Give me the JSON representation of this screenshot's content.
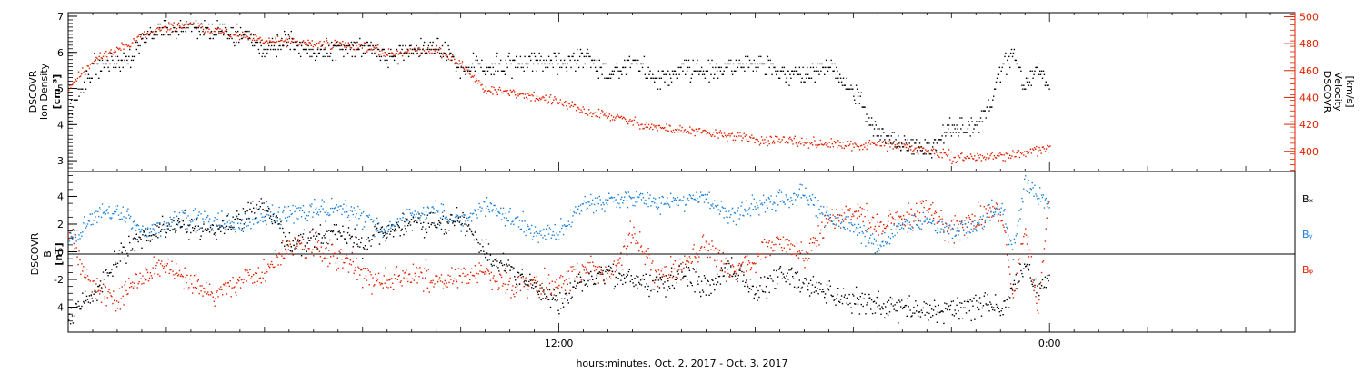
{
  "xaxis": {
    "label": "hours:minutes, Oct.  2, 2017 - Oct.  3, 2017",
    "range_hours": [
      0,
      50
    ],
    "major_ticks": [
      {
        "hour": 20,
        "label": "12:00"
      },
      {
        "hour": 40,
        "label": "0:00"
      }
    ]
  },
  "panel_top": {
    "ylabel_left": [
      "DSCOVR",
      "Ion Density",
      "[cm⁻³]"
    ],
    "ylabel_right": [
      "DSCOVR",
      "Velocity",
      "[km/s]"
    ],
    "left_ticks": [
      "3",
      "4",
      "5",
      "6",
      "7"
    ],
    "right_ticks": [
      "400",
      "420",
      "440",
      "460",
      "480",
      "500"
    ]
  },
  "panel_bottom": {
    "ylabel": [
      "DSCOVR",
      "B",
      "[nT]"
    ],
    "ticks": [
      "-4",
      "-2",
      "0",
      "2",
      "4"
    ],
    "legend": [
      "Bₓ",
      "Bᵧ",
      "Bᵩ"
    ]
  },
  "colors": {
    "density": "#000000",
    "velocity": "#dd2200",
    "bx": "#000000",
    "by": "#1a7fd4",
    "bz": "#dd2200"
  },
  "chart_data": [
    {
      "type": "scatter",
      "title": "",
      "xlabel": "hours:minutes, Oct.  2, 2017 - Oct.  3, 2017",
      "x_units": "hours since Oct. 2, 2017 04:00 UT (axis labels show 12:00 at 20 h and 0:00 at 40 h)",
      "series": [
        {
          "name": "Ion Density",
          "axis": "left",
          "units": "cm^-3",
          "ylim": [
            2.7,
            7.1
          ],
          "x": [
            0,
            1,
            2,
            2.5,
            3,
            4,
            5,
            6,
            7,
            8,
            9,
            10,
            11,
            12,
            13,
            14,
            15,
            16,
            16.5,
            17,
            18,
            19,
            20,
            21,
            22,
            23,
            24,
            25,
            26,
            27,
            28,
            29,
            30,
            31,
            32,
            33,
            34,
            35,
            36,
            37,
            37.5,
            38,
            38.5,
            39,
            39.5,
            40
          ],
          "y": [
            4.3,
            5.6,
            5.8,
            5.9,
            6.4,
            6.7,
            6.7,
            6.6,
            6.5,
            6.1,
            6.4,
            6.0,
            6.1,
            6.2,
            5.9,
            6.1,
            6.2,
            5.5,
            5.7,
            5.6,
            5.7,
            5.8,
            5.7,
            5.9,
            5.4,
            5.8,
            5.2,
            5.6,
            5.5,
            5.6,
            5.8,
            5.5,
            5.3,
            5.7,
            4.9,
            3.8,
            3.5,
            3.3,
            3.9,
            4.0,
            4.5,
            5.5,
            5.9,
            5.1,
            5.6,
            5.0
          ]
        },
        {
          "name": "Velocity",
          "axis": "right",
          "units": "km/s",
          "ylim": [
            385,
            503
          ],
          "x": [
            0,
            1,
            2,
            3,
            4,
            5,
            6,
            7,
            8,
            9,
            10,
            11,
            12,
            13,
            14,
            15,
            16,
            17,
            18,
            19,
            20,
            21,
            22,
            23,
            24,
            25,
            26,
            27,
            28,
            29,
            30,
            31,
            32,
            33,
            34,
            35,
            36,
            37,
            38,
            38.5,
            39,
            40
          ],
          "y": [
            448,
            468,
            476,
            486,
            492,
            494,
            490,
            486,
            482,
            482,
            480,
            480,
            478,
            473,
            475,
            476,
            465,
            446,
            444,
            441,
            437,
            430,
            427,
            422,
            418,
            416,
            414,
            412,
            409,
            408,
            407,
            406,
            404,
            406,
            404,
            401,
            396,
            396,
            397,
            398,
            399,
            403
          ]
        }
      ]
    },
    {
      "type": "scatter",
      "title": "",
      "ylabel": "B [nT]",
      "ylim": [
        -5.8,
        5.8
      ],
      "series": [
        {
          "name": "Bx",
          "x": [
            0,
            1,
            2,
            3,
            4,
            5,
            6,
            7,
            8,
            9,
            10,
            11,
            12,
            13,
            14,
            15,
            16,
            17,
            18,
            19,
            20,
            21,
            22,
            23,
            24,
            25,
            26,
            27,
            28,
            29,
            30,
            31,
            32,
            33,
            34,
            35,
            36,
            37,
            37.5,
            38,
            38.5,
            39,
            39.5,
            40
          ],
          "y": [
            -4.5,
            -3.0,
            -0.5,
            1.0,
            2.0,
            2.0,
            1.5,
            2.5,
            3.5,
            0.5,
            1.0,
            1.5,
            0.5,
            1.5,
            2.0,
            2.0,
            2.5,
            0.0,
            -1.5,
            -2.5,
            -3.8,
            -2.0,
            -1.5,
            -2.0,
            -2.5,
            -1.5,
            -2.5,
            -1.0,
            -3.0,
            -1.5,
            -2.2,
            -3.0,
            -3.5,
            -3.8,
            -4.0,
            -4.2,
            -4.0,
            -3.8,
            -3.5,
            -4.3,
            -2.5,
            -1.0,
            -2.5,
            -2.0
          ]
        },
        {
          "name": "By",
          "x": [
            0,
            1,
            2,
            3,
            4,
            5,
            6,
            7,
            8,
            9,
            10,
            11,
            12,
            13,
            14,
            15,
            16,
            17,
            18,
            19,
            20,
            21,
            22,
            23,
            24,
            25,
            26,
            27,
            28,
            29,
            30,
            31,
            32,
            33,
            34,
            35,
            36,
            37,
            38,
            38.5,
            39,
            39.5,
            40
          ],
          "y": [
            0.8,
            2.5,
            3.0,
            1.5,
            2.0,
            2.5,
            2.2,
            2.0,
            2.5,
            2.8,
            3.0,
            3.2,
            2.5,
            1.5,
            2.8,
            3.0,
            2.2,
            3.5,
            2.5,
            1.5,
            1.5,
            3.5,
            3.8,
            4.0,
            3.5,
            3.8,
            4.0,
            2.5,
            3.5,
            3.8,
            4.2,
            2.5,
            1.8,
            0.5,
            2.0,
            2.2,
            1.5,
            2.0,
            3.5,
            0.0,
            5.0,
            4.0,
            3.5
          ]
        },
        {
          "name": "Bz",
          "x": [
            0,
            1,
            2,
            3,
            4,
            5,
            6,
            7,
            8,
            9,
            10,
            11,
            12,
            13,
            14,
            15,
            16,
            17,
            18,
            19,
            20,
            21,
            22,
            23,
            24,
            25,
            26,
            27,
            28,
            29,
            30,
            31,
            32,
            33,
            34,
            35,
            36,
            37,
            38,
            38.5,
            39,
            39.5,
            40
          ],
          "y": [
            1.5,
            -2.5,
            -3.5,
            -1.5,
            -1.0,
            -2.5,
            -3.0,
            -2.0,
            -1.5,
            0.5,
            0.3,
            -0.5,
            -1.5,
            -2.0,
            -1.5,
            -2.0,
            -1.8,
            -1.5,
            -2.5,
            -2.0,
            -2.5,
            -1.0,
            -2.0,
            1.5,
            -2.0,
            -1.0,
            0.5,
            -1.5,
            -0.5,
            1.0,
            -0.5,
            2.5,
            3.0,
            2.0,
            2.5,
            3.0,
            1.5,
            2.5,
            3.0,
            -3.5,
            2.0,
            -4.0,
            4.5
          ]
        }
      ]
    }
  ]
}
